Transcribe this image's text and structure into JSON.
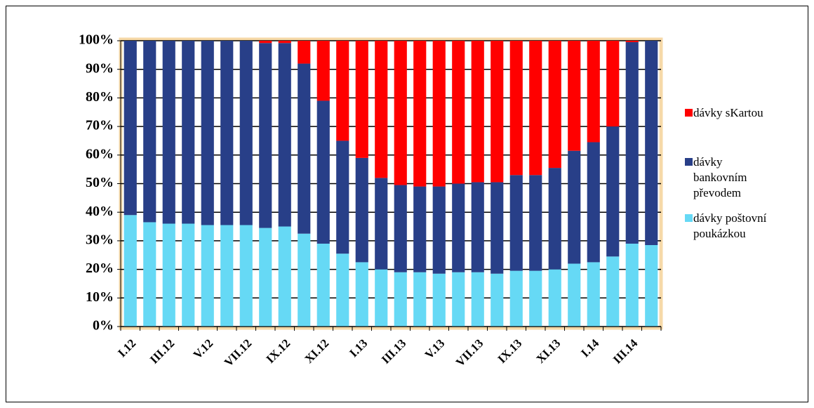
{
  "chart_data": {
    "type": "stacked_bar",
    "categories": [
      "I.12",
      null,
      "III.12",
      null,
      "V.12",
      null,
      "VII.12",
      null,
      "IX.12",
      null,
      "XI.12",
      null,
      "I.13",
      null,
      "III.13",
      null,
      "V.13",
      null,
      "VII.13",
      null,
      "IX.13",
      null,
      "XI.13",
      null,
      "I.14",
      null,
      "III.14",
      null
    ],
    "series": [
      {
        "name": "dávky poštovní poukázkou",
        "color": "#66d9f5",
        "values": [
          39,
          36.5,
          36,
          36,
          35.5,
          35.5,
          35.5,
          34.5,
          35,
          32.5,
          29,
          25.5,
          22.5,
          20,
          19,
          19,
          18.5,
          19,
          19,
          18.5,
          19.5,
          19.5,
          20,
          22,
          22.5,
          24.5,
          29,
          28.5
        ]
      },
      {
        "name": "dávky bankovním převodem",
        "color": "#283f88",
        "values": [
          61,
          63.5,
          64,
          64,
          64.5,
          64.5,
          64.5,
          64.7,
          64.2,
          59.5,
          50,
          39.5,
          36.5,
          32,
          30.5,
          30,
          30.5,
          31,
          31.5,
          32,
          33.5,
          33.5,
          35.5,
          39.5,
          42,
          45.5,
          70.5,
          71.5
        ]
      },
      {
        "name": "dávky sKartou",
        "color": "#ff0000",
        "values": [
          0,
          0,
          0,
          0,
          0,
          0,
          0,
          0.8,
          0.8,
          8,
          21,
          35,
          41,
          48,
          50.5,
          51,
          51,
          50,
          49.5,
          49.5,
          47,
          47,
          44.5,
          38.5,
          35.5,
          30,
          0.5,
          0
        ]
      }
    ],
    "ylim": [
      0,
      100
    ],
    "yticks": [
      {
        "value": 0,
        "label": "0%"
      },
      {
        "value": 10,
        "label": "10%"
      },
      {
        "value": 20,
        "label": "20%"
      },
      {
        "value": 30,
        "label": "30%"
      },
      {
        "value": 40,
        "label": "40%"
      },
      {
        "value": 50,
        "label": "50%"
      },
      {
        "value": 60,
        "label": "60%"
      },
      {
        "value": 70,
        "label": "70%"
      },
      {
        "value": 80,
        "label": "80%"
      },
      {
        "value": 90,
        "label": "90%"
      },
      {
        "value": 100,
        "label": "100%"
      }
    ],
    "grid": true,
    "legend": "right"
  }
}
